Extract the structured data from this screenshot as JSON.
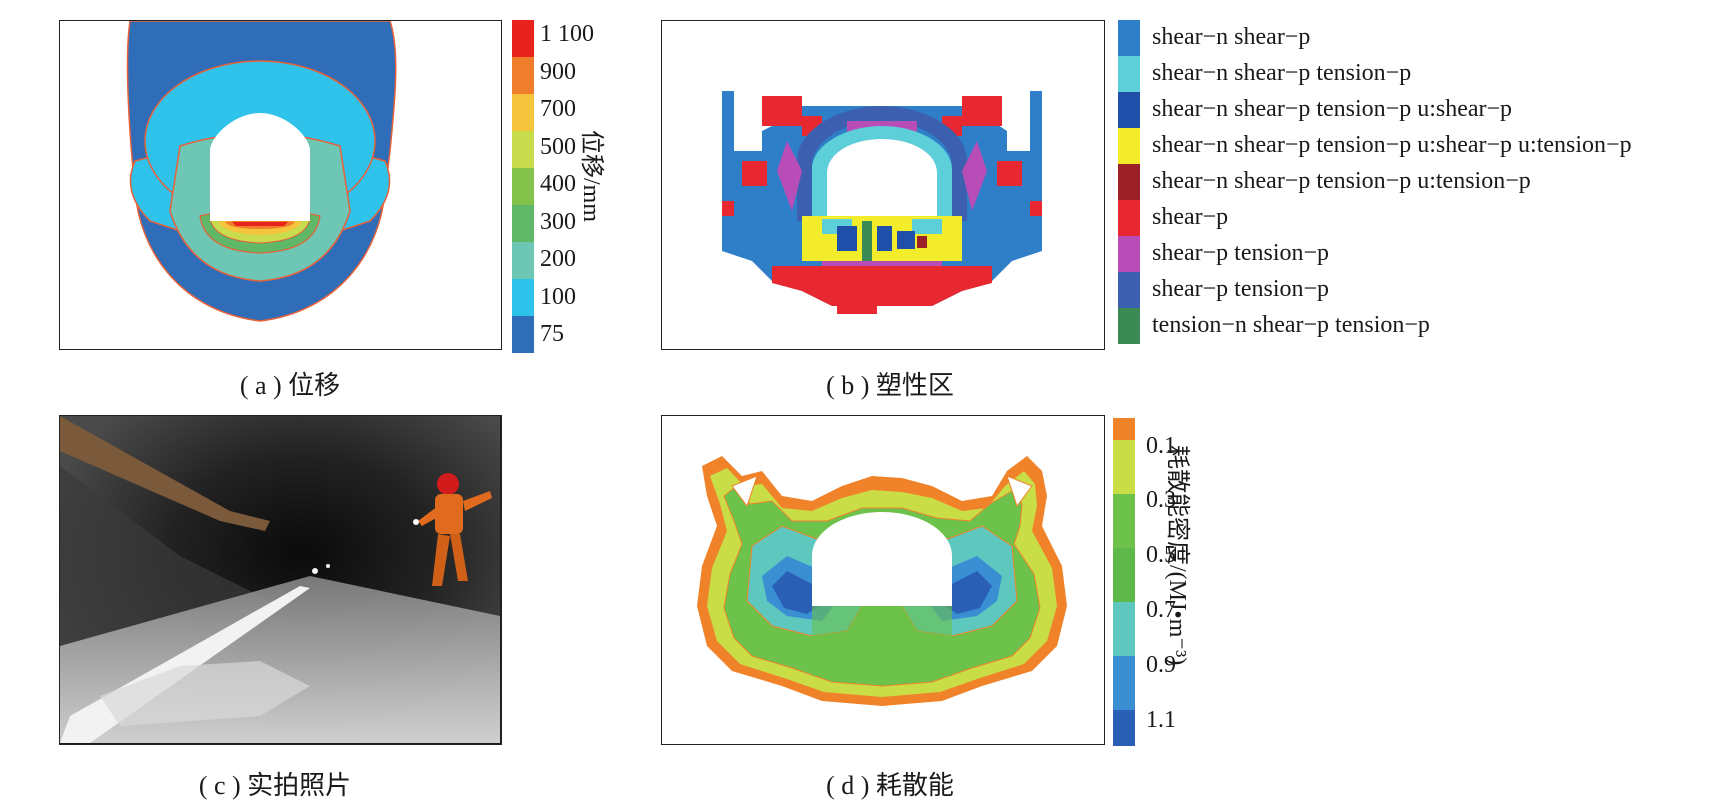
{
  "panels": {
    "a": {
      "caption": "( a ) 位移",
      "colorbar": {
        "title": "位移/mm",
        "ticks": [
          "1 100",
          "900",
          "700",
          "500",
          "400",
          "300",
          "200",
          "100",
          "75"
        ],
        "colors": [
          "#e8231d",
          "#f07d2c",
          "#f4c43c",
          "#c9dc4d",
          "#83c34c",
          "#5fb868",
          "#6dc7b4",
          "#2fc2ea",
          "#2f6db8"
        ]
      }
    },
    "b": {
      "caption": "( b ) 塑性区",
      "legend": [
        {
          "label": "shear−n shear−p",
          "color": "#2f7ec8"
        },
        {
          "label": "shear−n shear−p tension−p",
          "color": "#5ccfd8"
        },
        {
          "label": "shear−n shear−p tension−p u:shear−p",
          "color": "#1f4fa8"
        },
        {
          "label": "shear−n shear−p tension−p u:shear−p u:tension−p",
          "color": "#9c2028"
        },
        {
          "label": "shear−n shear−p tension−p u:tension−p",
          "color": "#e82830"
        },
        {
          "label": "shear−p",
          "color": "#b84db8"
        },
        {
          "label": "shear−p tension−p",
          "color": "#3c5fb0"
        },
        {
          "label": "shear−p tension−p",
          "color": "#3b8a56"
        },
        {
          "label": "tension−n shear−p tension−p",
          "color": "#f0542a"
        }
      ]
    },
    "c": {
      "caption": "( c ) 实拍照片"
    },
    "d": {
      "caption": "( d ) 耗散能",
      "colorbar": {
        "title": "耗散能密度/(MJ•m⁻³)",
        "ticks": [
          "0.1",
          "0.3",
          "0.5",
          "0.7",
          "0.9",
          "1.1"
        ],
        "colors": [
          "#f0832a",
          "#c9dd46",
          "#6cc24a",
          "#5fb84a",
          "#5ec8bf",
          "#3a8fd2",
          "#2960b6"
        ]
      }
    }
  }
}
